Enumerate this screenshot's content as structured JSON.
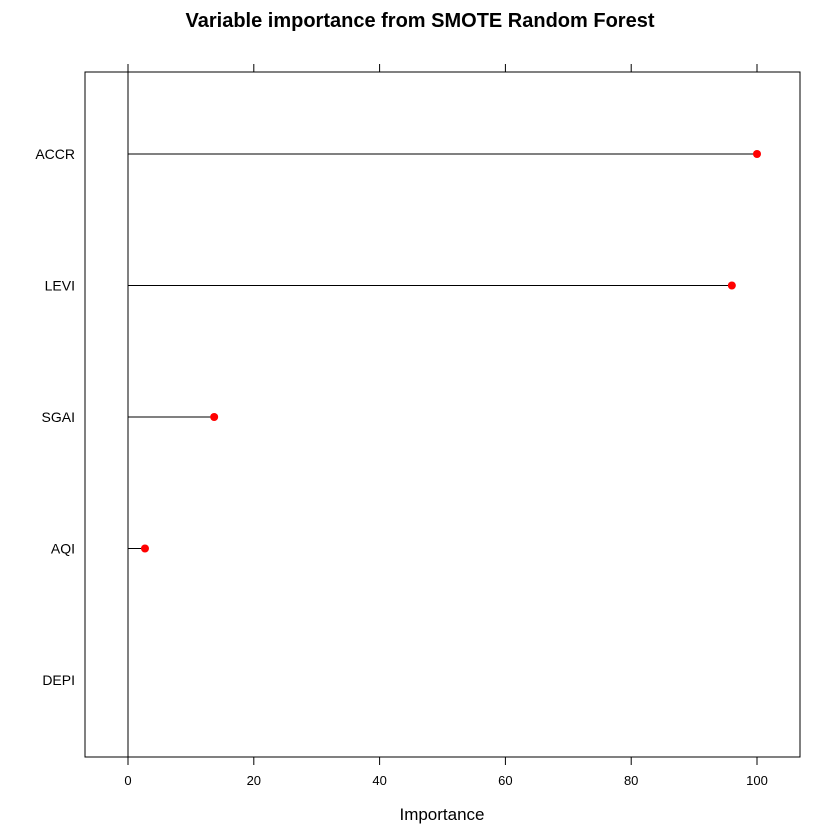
{
  "chart_data": {
    "type": "dotplot",
    "title": "Variable importance from SMOTE Random Forest",
    "xlabel": "Importance",
    "ylabel": "",
    "categories": [
      "ACCR",
      "LEVI",
      "SGAI",
      "AQI",
      "DEPI"
    ],
    "values": [
      100,
      96,
      13.7,
      2.7,
      0
    ],
    "xlim": [
      -7,
      107
    ],
    "xticks": [
      0,
      20,
      40,
      60,
      80,
      100
    ],
    "xtick_labels": [
      "0",
      "20",
      "40",
      "60",
      "80",
      "100"
    ],
    "grid": false,
    "legend": "none",
    "colors": {
      "point": "#ff0000",
      "line": "#000000",
      "frame": "#000000"
    }
  }
}
